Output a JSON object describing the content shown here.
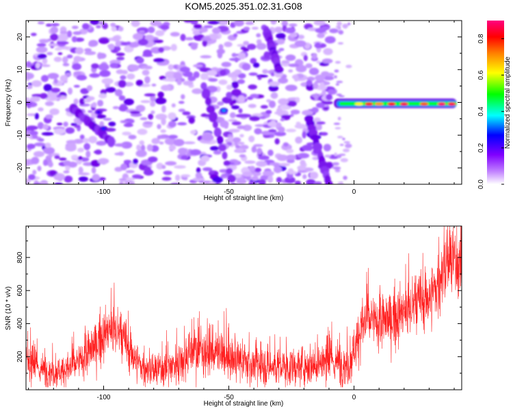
{
  "title": "KOM5.2025.351.02.31.G08",
  "chart_data": [
    {
      "type": "heatmap",
      "xlabel": "Height of straight line (km)",
      "ylabel": "Frequency (Hz)",
      "xlim": [
        -131,
        43
      ],
      "ylim": [
        -25,
        25
      ],
      "xticks": [
        -100,
        -50,
        0
      ],
      "yticks": [
        -20,
        -10,
        0,
        10,
        20
      ],
      "colorbar": {
        "label": "Normalized spectral amplitude",
        "range": [
          0,
          0.9
        ],
        "ticks": [
          0.0,
          0.2,
          0.4,
          0.6,
          0.8
        ],
        "colors": [
          "#ffffff",
          "#8000ff",
          "#0000ff",
          "#00ffff",
          "#00ff00",
          "#ffff00",
          "#ff8000",
          "#ff0000",
          "#ff0080"
        ]
      },
      "features": {
        "background_speckle_x_range": [
          -131,
          -8
        ],
        "strong_trace": {
          "x_range": [
            -8,
            41
          ],
          "frequency_hz": -0.5,
          "peak_amplitude": 0.88
        },
        "diagonal_streaks": [
          {
            "x": [
              -112,
              -97
            ],
            "y": [
              -2,
              -12
            ]
          },
          {
            "x": [
              -60,
              -47
            ],
            "y": [
              5,
              -28
            ]
          },
          {
            "x": [
              -35,
              -30
            ],
            "y": [
              22,
              10
            ]
          },
          {
            "x": [
              -18,
              -10
            ],
            "y": [
              -5,
              -25
            ]
          }
        ],
        "bright_spots": [
          {
            "x": -52,
            "y": -2.5,
            "amp": 0.35
          },
          {
            "x": -100,
            "y": -8,
            "amp": 0.3
          },
          {
            "x": -102,
            "y": -3,
            "amp": 0.25
          }
        ]
      }
    },
    {
      "type": "line",
      "xlabel": "Height of straight line (km)",
      "ylabel": "SNR (10 * v/v)",
      "xlim": [
        -131,
        43
      ],
      "ylim": [
        0,
        990
      ],
      "xticks": [
        -100,
        -50,
        0
      ],
      "yticks": [
        200,
        400,
        600,
        800
      ],
      "series": [
        {
          "color": "#ff2020",
          "x": [
            -131,
            -125,
            -120,
            -115,
            -110,
            -105,
            -100,
            -97,
            -94,
            -90,
            -85,
            -80,
            -75,
            -70,
            -65,
            -60,
            -55,
            -50,
            -45,
            -40,
            -35,
            -30,
            -25,
            -20,
            -15,
            -10,
            -5,
            -2,
            0,
            3,
            5,
            10,
            15,
            20,
            25,
            30,
            33,
            35,
            38,
            41,
            43
          ],
          "mean": [
            170,
            120,
            110,
            120,
            160,
            240,
            330,
            360,
            340,
            250,
            140,
            110,
            130,
            170,
            240,
            240,
            220,
            190,
            170,
            150,
            140,
            140,
            130,
            150,
            160,
            170,
            160,
            150,
            250,
            380,
            420,
            400,
            430,
            460,
            520,
            560,
            620,
            700,
            780,
            760,
            740
          ],
          "spread": [
            100,
            90,
            90,
            90,
            110,
            130,
            140,
            150,
            150,
            140,
            100,
            90,
            100,
            120,
            140,
            140,
            130,
            120,
            110,
            110,
            110,
            110,
            100,
            110,
            120,
            130,
            120,
            120,
            140,
            150,
            160,
            150,
            160,
            170,
            180,
            180,
            190,
            200,
            200,
            190,
            180
          ],
          "points": 2200
        }
      ]
    }
  ]
}
